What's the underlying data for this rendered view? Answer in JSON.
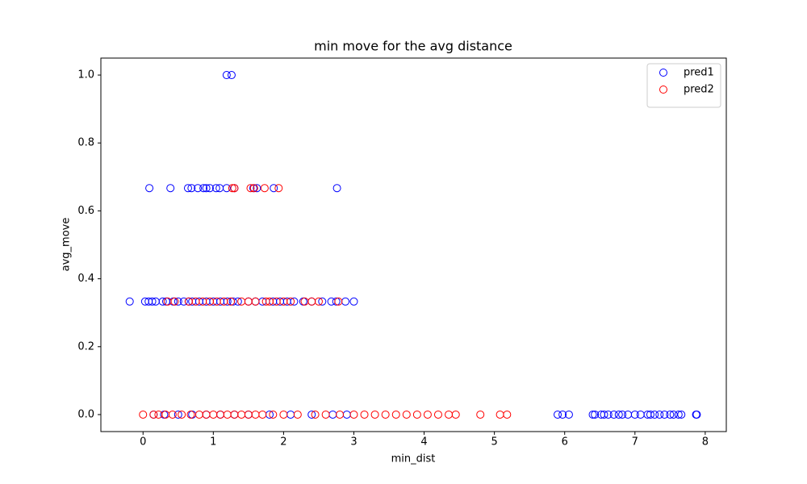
{
  "chart_data": {
    "type": "scatter",
    "title": "min move for the avg distance",
    "x_label": "min_dist",
    "y_label": "avg_move",
    "xlim": [
      -0.6,
      8.3
    ],
    "ylim": [
      -0.05,
      1.05
    ],
    "xticks": [
      0,
      1,
      2,
      3,
      4,
      5,
      6,
      7,
      8
    ],
    "yticks": [
      {
        "value": 0,
        "label": "0.0"
      },
      {
        "value": 0.2,
        "label": "0.2"
      },
      {
        "value": 0.4,
        "label": "0.4"
      },
      {
        "value": 0.6,
        "label": "0.6"
      },
      {
        "value": 0.8,
        "label": "0.8"
      },
      {
        "value": 1,
        "label": "1.0"
      }
    ],
    "legend": "upper right",
    "grid": false,
    "series": [
      {
        "name": "pred1",
        "color": "#0000ff",
        "x": [
          1.19,
          1.26,
          0.09,
          0.39,
          0.64,
          0.69,
          0.78,
          0.86,
          0.9,
          0.95,
          1.04,
          1.09,
          1.19,
          1.3,
          1.57,
          1.62,
          1.86,
          2.76,
          -0.19,
          0.03,
          0.08,
          0.13,
          0.18,
          0.28,
          0.33,
          0.43,
          0.5,
          0.58,
          0.65,
          0.7,
          0.8,
          0.9,
          1.0,
          1.1,
          1.2,
          1.28,
          1.35,
          1.5,
          1.6,
          1.7,
          1.85,
          1.95,
          2.05,
          2.15,
          2.28,
          2.4,
          2.55,
          2.68,
          2.75,
          2.88,
          3.0,
          0.15,
          0.3,
          0.5,
          0.7,
          0.9,
          1.1,
          1.3,
          1.5,
          1.8,
          2.1,
          2.4,
          2.7,
          2.9,
          5.9,
          5.97,
          6.06,
          6.4,
          6.43,
          6.52,
          6.56,
          6.62,
          6.7,
          6.77,
          6.82,
          6.9,
          7.0,
          7.08,
          7.18,
          7.22,
          7.28,
          7.35,
          7.42,
          7.5,
          7.55,
          7.62,
          7.66,
          7.87,
          7.88
        ],
        "values": [
          1,
          1,
          0.667,
          0.667,
          0.667,
          0.667,
          0.667,
          0.667,
          0.667,
          0.667,
          0.667,
          0.667,
          0.667,
          0.667,
          0.667,
          0.667,
          0.667,
          0.667,
          0.333,
          0.333,
          0.333,
          0.333,
          0.333,
          0.333,
          0.333,
          0.333,
          0.333,
          0.333,
          0.333,
          0.333,
          0.333,
          0.333,
          0.333,
          0.333,
          0.333,
          0.333,
          0.333,
          0.333,
          0.333,
          0.333,
          0.333,
          0.333,
          0.333,
          0.333,
          0.333,
          0.333,
          0.333,
          0.333,
          0.333,
          0.333,
          0.333,
          0,
          0,
          0,
          0,
          0,
          0,
          0,
          0,
          0,
          0,
          0,
          0,
          0,
          0,
          0,
          0,
          0,
          0,
          0,
          0,
          0,
          0,
          0,
          0,
          0,
          0,
          0,
          0,
          0,
          0,
          0,
          0,
          0,
          0,
          0,
          0,
          0,
          0
        ]
      },
      {
        "name": "pred2",
        "color": "#ff0000",
        "x": [
          1.27,
          1.3,
          1.53,
          1.58,
          1.73,
          1.93,
          0.35,
          0.45,
          0.65,
          0.75,
          0.85,
          0.95,
          1.05,
          1.15,
          1.25,
          1.4,
          1.5,
          1.6,
          1.75,
          1.8,
          1.9,
          2.0,
          2.1,
          2.3,
          2.4,
          2.5,
          2.78,
          0,
          0.15,
          0.22,
          0.32,
          0.42,
          0.55,
          0.68,
          0.8,
          0.9,
          1.0,
          1.1,
          1.2,
          1.3,
          1.4,
          1.5,
          1.6,
          1.7,
          1.85,
          2.0,
          2.2,
          2.45,
          2.6,
          2.8,
          3.0,
          3.15,
          3.3,
          3.45,
          3.6,
          3.75,
          3.9,
          4.05,
          4.2,
          4.35,
          4.45,
          4.8,
          5.08,
          5.18
        ],
        "values": [
          0.667,
          0.667,
          0.667,
          0.667,
          0.667,
          0.667,
          0.333,
          0.333,
          0.333,
          0.333,
          0.333,
          0.333,
          0.333,
          0.333,
          0.333,
          0.333,
          0.333,
          0.333,
          0.333,
          0.333,
          0.333,
          0.333,
          0.333,
          0.333,
          0.333,
          0.333,
          0.333,
          0,
          0,
          0,
          0,
          0,
          0,
          0,
          0,
          0,
          0,
          0,
          0,
          0,
          0,
          0,
          0,
          0,
          0,
          0,
          0,
          0,
          0,
          0,
          0,
          0,
          0,
          0,
          0,
          0,
          0,
          0,
          0,
          0,
          0,
          0,
          0,
          0
        ]
      }
    ]
  }
}
